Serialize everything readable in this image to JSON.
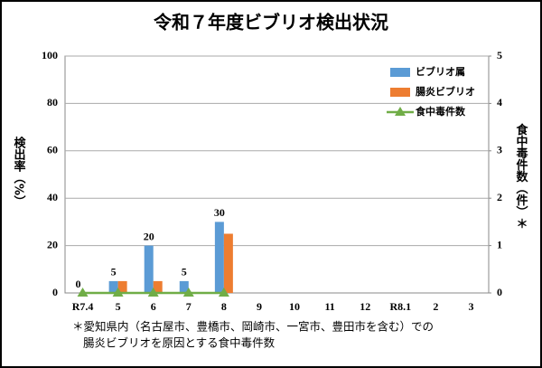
{
  "chart_data": {
    "type": "bar",
    "title": "令和７年度ビブリオ検出状況",
    "categories": [
      "R7.4",
      "5",
      "6",
      "7",
      "8",
      "9",
      "10",
      "11",
      "12",
      "R8.1",
      "2",
      "3"
    ],
    "series": [
      {
        "name": "ビブリオ属",
        "color": "#5b9bd5",
        "type": "bar",
        "data_labels": true,
        "values": [
          0,
          5,
          20,
          5,
          30,
          null,
          null,
          null,
          null,
          null,
          null,
          null
        ]
      },
      {
        "name": "腸炎ビブリオ",
        "color": "#ed7d31",
        "type": "bar",
        "values": [
          0,
          5,
          5,
          0,
          25,
          null,
          null,
          null,
          null,
          null,
          null,
          null
        ]
      },
      {
        "name": "食中毒件数",
        "color": "#70ad47",
        "type": "line",
        "axis": "y2",
        "values": [
          0,
          0,
          0,
          0,
          0,
          null,
          null,
          null,
          null,
          null,
          null,
          null
        ]
      }
    ],
    "ylabel": "検出率（%）",
    "y2label": "食中毒件数（件）＊",
    "ylim": [
      0,
      100
    ],
    "yticks": [
      0,
      20,
      40,
      60,
      80,
      100
    ],
    "y2lim": [
      0,
      5
    ],
    "y2ticks": [
      0,
      1,
      2,
      3,
      4,
      5
    ],
    "grid": true,
    "legend": "top-right",
    "footnote": [
      "＊愛知県内（名古屋市、豊橋市、岡崎市、一宮市、豊田市を含む）での",
      "腸炎ビブリオを原因とする食中毒件数"
    ]
  }
}
